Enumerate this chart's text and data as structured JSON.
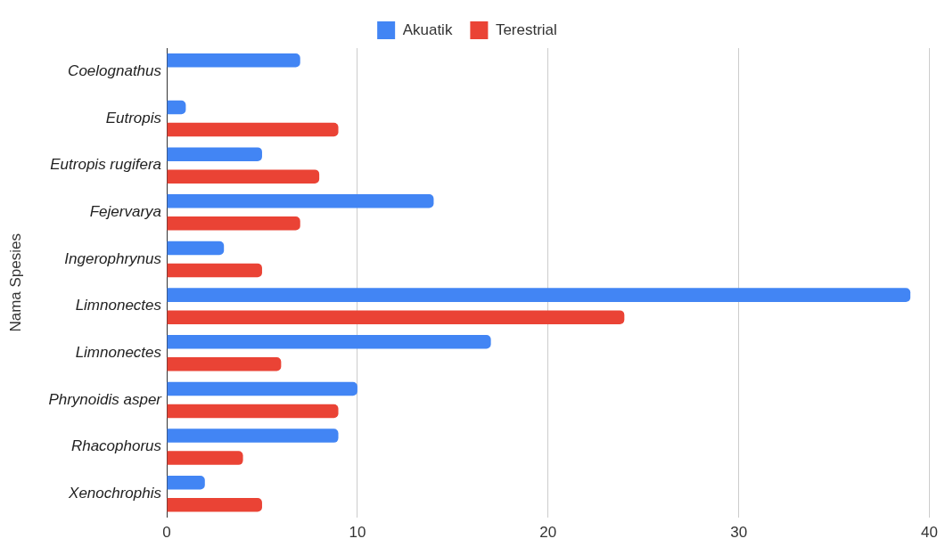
{
  "chart_data": {
    "type": "bar",
    "orientation": "horizontal",
    "ylabel": "Nama Spesies",
    "categories": [
      "Coelognathus",
      "Eutropis",
      "Eutropis rugifera",
      "Fejervarya",
      "Ingerophrynus",
      "Limnonectes",
      "Limnonectes",
      "Phrynoidis asper",
      "Rhacophorus",
      "Xenochrophis"
    ],
    "series": [
      {
        "name": "Akuatik",
        "color": "#4285f4",
        "values": [
          7,
          1,
          5,
          14,
          3,
          39,
          17,
          10,
          9,
          2
        ]
      },
      {
        "name": "Terestrial",
        "color": "#ea4335",
        "values": [
          null,
          9,
          8,
          7,
          5,
          24,
          6,
          9,
          4,
          5
        ]
      }
    ],
    "xlim": [
      0,
      40
    ],
    "xticks": [
      0,
      10,
      20,
      30,
      40
    ],
    "grid": "x",
    "legend": "top"
  }
}
